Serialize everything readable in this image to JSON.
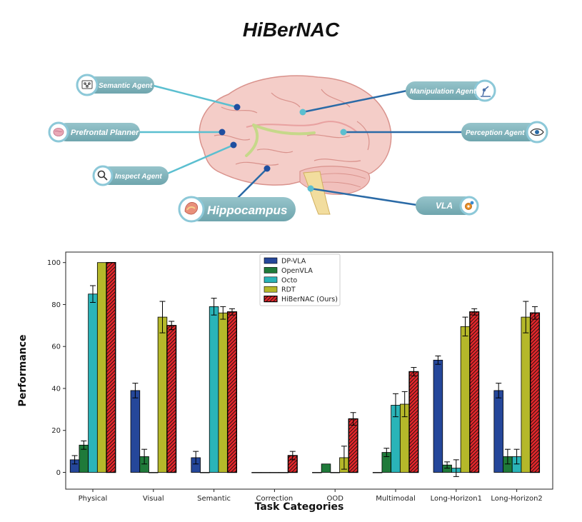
{
  "title": "HiBerNAC",
  "diagram": {
    "agents": [
      {
        "label": "Semantic Agent",
        "icon": "network-icon"
      },
      {
        "label": "Prefrontal Planner",
        "icon": "brain-icon"
      },
      {
        "label": "Inspect  Agent",
        "icon": "magnifier-icon"
      },
      {
        "label": "Hippocampus",
        "icon": "hippocampus-icon"
      },
      {
        "label": "Manipulation Agent",
        "icon": "robot-arm-icon"
      },
      {
        "label": "Perception Agent",
        "icon": "eye-icon"
      },
      {
        "label": "VLA",
        "icon": "gear-icon"
      }
    ],
    "colors": {
      "pill": "#7fb2ba",
      "brain": "#f4cdc8",
      "dark_line": "#2a6aa6",
      "light_line": "#5bbfd0"
    }
  },
  "chart_data": {
    "type": "bar",
    "xlabel": "Task Categories",
    "ylabel": "Performance",
    "ylim": [
      -8,
      105
    ],
    "yticks": [
      0,
      20,
      40,
      60,
      80,
      100
    ],
    "grid": false,
    "legend_position": "top-center",
    "categories": [
      "Physical",
      "Visual",
      "Semantic",
      "Correction",
      "OOD",
      "Multimodal",
      "Long-Horizon1",
      "Long-Horizon2"
    ],
    "series": [
      {
        "name": "DP-VLA",
        "color": "#25479a",
        "values": [
          6,
          39,
          7,
          0,
          0,
          0,
          53.5,
          39
        ],
        "errors": [
          2,
          3.5,
          3,
          0,
          0,
          0,
          2,
          3.5
        ]
      },
      {
        "name": "OpenVLA",
        "color": "#1f7a3a",
        "values": [
          13,
          7.5,
          0,
          0,
          4,
          9.5,
          3.5,
          7.5
        ],
        "errors": [
          2,
          3.5,
          0,
          0,
          0,
          2,
          1.5,
          3.5
        ]
      },
      {
        "name": "Octo",
        "color": "#2ab4b8",
        "values": [
          85,
          0,
          79,
          0,
          0,
          32,
          2,
          7.5
        ],
        "errors": [
          4,
          0,
          4,
          0,
          0,
          5.5,
          4,
          3.5
        ]
      },
      {
        "name": "RDT",
        "color": "#b5b82a",
        "values": [
          100,
          74,
          76,
          0,
          7,
          32.5,
          69.5,
          74
        ],
        "errors": [
          0,
          7.5,
          3,
          0,
          5.5,
          6,
          4.5,
          7.5
        ]
      },
      {
        "name": "HiBerNAC (Ours)",
        "color": "#e4262a",
        "hatch": true,
        "values": [
          100,
          70,
          76.5,
          8,
          25.5,
          48,
          76.5,
          76
        ],
        "errors": [
          0,
          2,
          1.5,
          2,
          3,
          2,
          1.5,
          3
        ]
      }
    ]
  }
}
